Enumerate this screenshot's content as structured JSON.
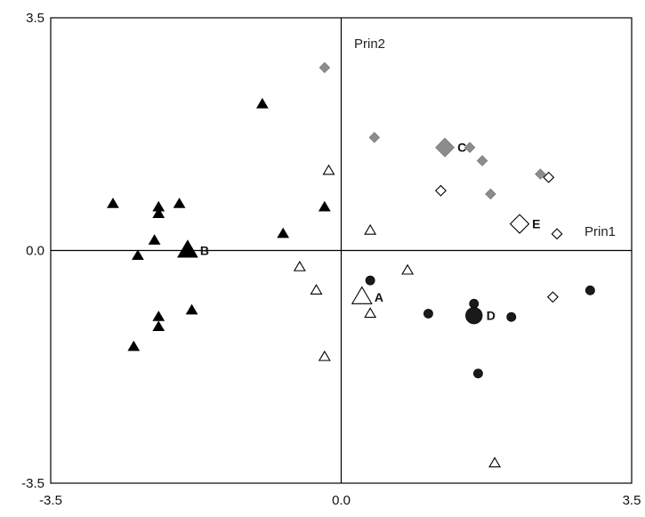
{
  "chart_data": {
    "type": "scatter",
    "title": "",
    "xlabel": "",
    "ylabel": "",
    "xlim": [
      -3.5,
      3.5
    ],
    "ylim": [
      -3.5,
      3.5
    ],
    "grid": false,
    "legend": "none",
    "x_ticks": [
      "-3.5",
      "0.0",
      "3.5"
    ],
    "y_ticks": [
      "3.5",
      "0.0",
      "-3.5"
    ],
    "axis_names": {
      "prin1": "Prin1",
      "prin2": "Prin2"
    },
    "series": [
      {
        "marker": "filled-triangle",
        "color": "#000000",
        "points": [
          [
            -2.75,
            0.7
          ],
          [
            -2.2,
            0.65
          ],
          [
            -2.2,
            0.55
          ],
          [
            -1.95,
            0.7
          ],
          [
            -0.95,
            2.2
          ],
          [
            -2.25,
            0.15
          ],
          [
            -2.45,
            -0.08
          ],
          [
            -1.85,
            0.05
          ],
          [
            -0.7,
            0.25
          ],
          [
            -0.2,
            0.65
          ],
          [
            -2.2,
            -1.0
          ],
          [
            -2.2,
            -1.15
          ],
          [
            -2.5,
            -1.45
          ],
          [
            -1.8,
            -0.9
          ]
        ]
      },
      {
        "marker": "open-triangle",
        "color": "#000000",
        "points": [
          [
            -0.15,
            1.2
          ],
          [
            0.35,
            0.3
          ],
          [
            0.8,
            -0.3
          ],
          [
            -0.5,
            -0.25
          ],
          [
            -0.3,
            -0.6
          ],
          [
            0.35,
            -0.95
          ],
          [
            -0.2,
            -1.6
          ],
          [
            1.85,
            -3.2
          ]
        ]
      },
      {
        "marker": "filled-circle",
        "color": "#1a1a1a",
        "points": [
          [
            0.35,
            -0.45
          ],
          [
            1.05,
            -0.95
          ],
          [
            1.6,
            -0.8
          ],
          [
            2.05,
            -1.0
          ],
          [
            3.0,
            -0.6
          ],
          [
            1.65,
            -1.85
          ]
        ]
      },
      {
        "marker": "gray-diamond",
        "color": "#8c8c8c",
        "points": [
          [
            -0.2,
            2.75
          ],
          [
            0.4,
            1.7
          ],
          [
            1.55,
            1.55
          ],
          [
            1.7,
            1.35
          ],
          [
            1.8,
            0.85
          ],
          [
            2.4,
            1.15
          ]
        ]
      },
      {
        "marker": "open-diamond",
        "color": "#000000",
        "points": [
          [
            1.2,
            0.9
          ],
          [
            2.5,
            1.1
          ],
          [
            2.6,
            0.25
          ],
          [
            2.55,
            -0.7
          ]
        ]
      }
    ],
    "centroids": [
      {
        "label": "A",
        "x": 0.25,
        "y": -0.7,
        "marker": "open-triangle"
      },
      {
        "label": "B",
        "x": -1.85,
        "y": 0.0,
        "marker": "filled-triangle"
      },
      {
        "label": "C",
        "x": 1.25,
        "y": 1.55,
        "marker": "gray-diamond"
      },
      {
        "label": "D",
        "x": 1.6,
        "y": -0.98,
        "marker": "filled-circle"
      },
      {
        "label": "E",
        "x": 2.15,
        "y": 0.4,
        "marker": "open-diamond"
      }
    ]
  }
}
